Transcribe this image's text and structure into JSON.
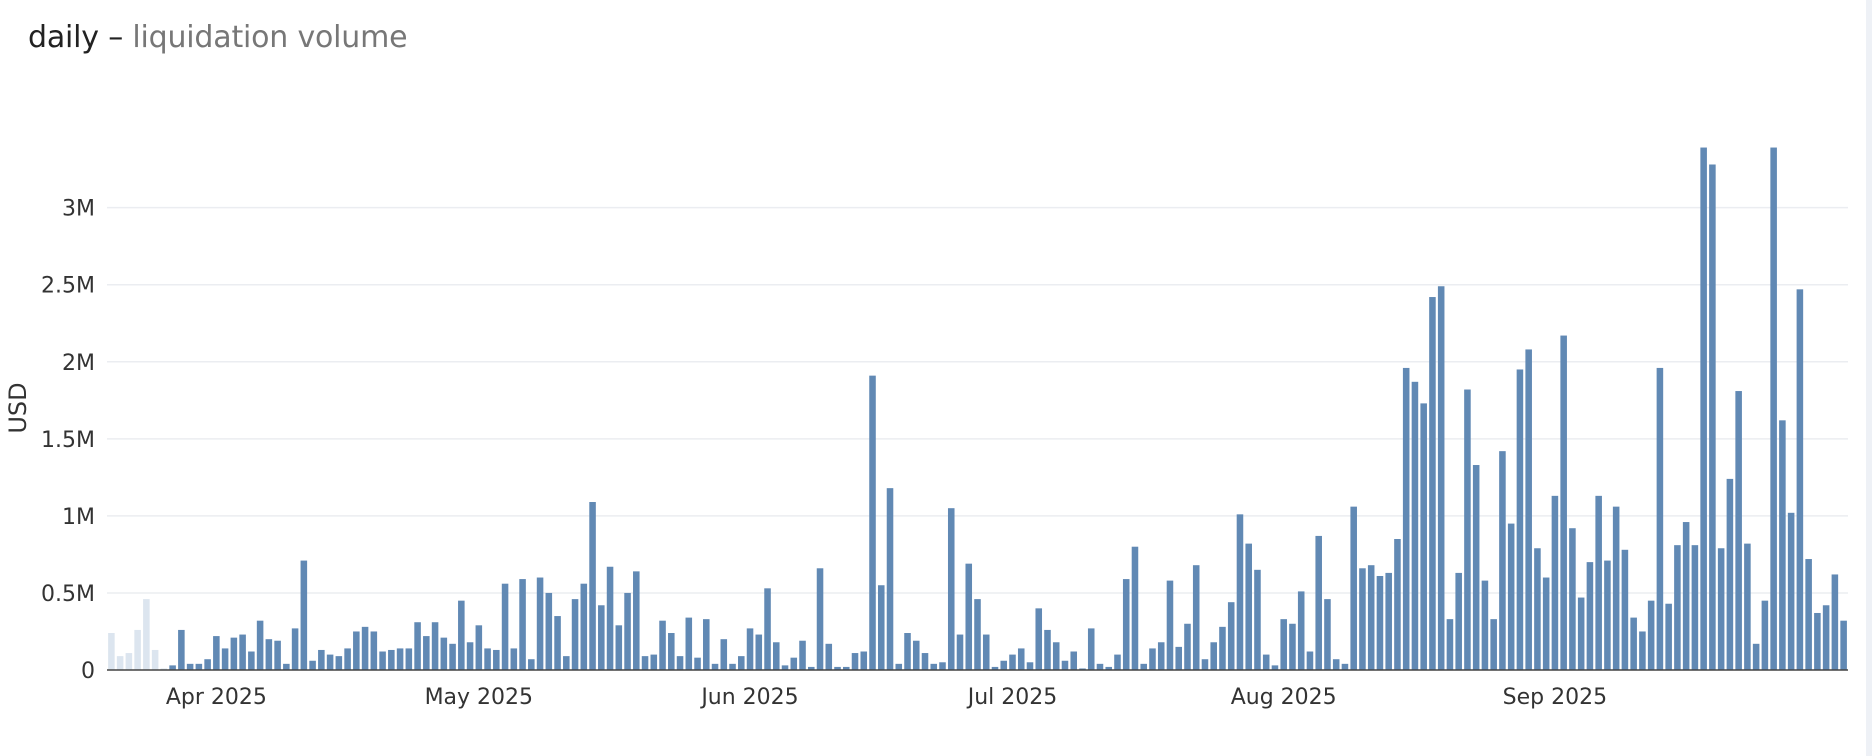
{
  "header": {
    "title": "daily",
    "separator": "–",
    "subtitle": "liquidation volume"
  },
  "colors": {
    "bar": "#6189b4",
    "bar_faded": "#dce5ef",
    "grid": "#ebedf1",
    "axis": "#444444",
    "text": "#333333"
  },
  "chart_data": {
    "type": "bar",
    "title": "",
    "xlabel": "",
    "ylabel": "USD",
    "ylim": [
      0,
      3400000
    ],
    "yticks": [
      0,
      500000,
      1000000,
      1500000,
      2000000,
      2500000,
      3000000
    ],
    "ytick_labels": [
      "0",
      "0.5M",
      "1M",
      "1.5M",
      "2M",
      "2.5M",
      "3M"
    ],
    "x_start": "2025-03-20",
    "x_end": "2025-09-30",
    "xtick_dates": [
      "2025-04-01",
      "2025-05-01",
      "2025-06-01",
      "2025-07-01",
      "2025-08-01",
      "2025-09-01"
    ],
    "xtick_labels": [
      "Apr 2025",
      "May 2025",
      "Jun 2025",
      "Jul 2025",
      "Aug 2025",
      "Sep 2025"
    ],
    "grid": true,
    "legend": "none",
    "faded_bars": 7,
    "values": [
      240000,
      90000,
      110000,
      260000,
      460000,
      130000,
      10000,
      30000,
      260000,
      40000,
      40000,
      70000,
      220000,
      140000,
      210000,
      230000,
      120000,
      320000,
      200000,
      190000,
      40000,
      270000,
      710000,
      60000,
      130000,
      100000,
      90000,
      140000,
      250000,
      280000,
      250000,
      120000,
      130000,
      140000,
      140000,
      310000,
      220000,
      310000,
      210000,
      170000,
      450000,
      180000,
      290000,
      140000,
      130000,
      560000,
      140000,
      590000,
      70000,
      600000,
      500000,
      350000,
      90000,
      460000,
      560000,
      1090000,
      420000,
      670000,
      290000,
      500000,
      640000,
      90000,
      100000,
      320000,
      240000,
      90000,
      340000,
      80000,
      330000,
      40000,
      200000,
      40000,
      90000,
      270000,
      230000,
      530000,
      180000,
      30000,
      80000,
      190000,
      20000,
      660000,
      170000,
      20000,
      20000,
      110000,
      120000,
      1910000,
      550000,
      1180000,
      40000,
      240000,
      190000,
      110000,
      40000,
      50000,
      1050000,
      230000,
      690000,
      460000,
      230000,
      20000,
      60000,
      100000,
      140000,
      50000,
      400000,
      260000,
      180000,
      60000,
      120000,
      10000,
      270000,
      40000,
      20000,
      100000,
      590000,
      800000,
      40000,
      140000,
      180000,
      580000,
      150000,
      300000,
      680000,
      70000,
      180000,
      280000,
      440000,
      1010000,
      820000,
      650000,
      100000,
      30000,
      330000,
      300000,
      510000,
      120000,
      870000,
      460000,
      70000,
      40000,
      1060000,
      660000,
      680000,
      610000,
      630000,
      850000,
      1960000,
      1870000,
      1730000,
      2420000,
      2490000,
      330000,
      630000,
      1820000,
      1330000,
      580000,
      330000,
      1420000,
      950000,
      1950000,
      2080000,
      790000,
      600000,
      1130000,
      2170000,
      920000,
      470000,
      700000,
      1130000,
      710000,
      1060000,
      780000,
      340000,
      250000,
      450000,
      1960000,
      430000,
      810000,
      960000,
      810000,
      3390000,
      3280000,
      790000,
      1240000,
      1810000,
      820000,
      170000,
      450000,
      3390000,
      1620000,
      1020000,
      2470000,
      720000,
      370000,
      420000,
      620000,
      320000
    ]
  }
}
